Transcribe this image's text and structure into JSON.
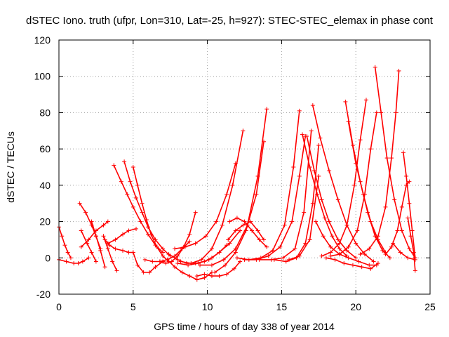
{
  "chart_data": {
    "type": "scatter",
    "title": "dSTEC Iono. truth (ufpr, Lon=310, Lat=-25, h=927): STEC-STEC_elemax in phase cont",
    "xlabel": "GPS time / hours of day 338 of year 2014",
    "ylabel": "dSTEC  / TECUs",
    "xlim": [
      0,
      25
    ],
    "ylim": [
      -20,
      120
    ],
    "xticks": [
      0,
      5,
      10,
      15,
      20,
      25
    ],
    "yticks": [
      -20,
      0,
      20,
      40,
      60,
      80,
      100,
      120
    ],
    "grid": true,
    "marker": "+",
    "color": "#ff0000",
    "series": [
      {
        "x": [
          0.0,
          0.2,
          0.4,
          0.6,
          0.8
        ],
        "y": [
          17,
          12,
          7,
          3,
          0
        ]
      },
      {
        "x": [
          0.0,
          0.5,
          1.0,
          1.3,
          1.6,
          2.0
        ],
        "y": [
          -1,
          -2,
          -3,
          -3,
          -2,
          0
        ]
      },
      {
        "x": [
          1.4,
          1.8,
          2.2,
          2.5,
          2.8
        ],
        "y": [
          30,
          25,
          18,
          12,
          5
        ]
      },
      {
        "x": [
          1.5,
          2.0,
          2.5,
          3.0,
          3.3
        ],
        "y": [
          6,
          10,
          15,
          18,
          20
        ]
      },
      {
        "x": [
          1.5,
          1.9,
          2.2,
          2.5
        ],
        "y": [
          15,
          8,
          3,
          -2
        ]
      },
      {
        "x": [
          2.2,
          2.5,
          2.8,
          3.1
        ],
        "y": [
          20,
          12,
          4,
          -5
        ]
      },
      {
        "x": [
          3.0,
          3.3,
          3.6,
          3.9
        ],
        "y": [
          12,
          5,
          -2,
          -7
        ]
      },
      {
        "x": [
          3.1,
          3.4,
          3.8,
          4.3,
          4.7,
          5.0
        ],
        "y": [
          10,
          7,
          5,
          4,
          3,
          3
        ]
      },
      {
        "x": [
          3.3,
          3.8,
          4.3,
          4.7,
          5.2
        ],
        "y": [
          8,
          10,
          13,
          15,
          16
        ]
      },
      {
        "x": [
          4.4,
          4.8,
          5.2,
          5.6,
          6.0,
          6.5,
          7.0,
          7.5
        ],
        "y": [
          53,
          42,
          33,
          25,
          17,
          10,
          5,
          1
        ]
      },
      {
        "x": [
          3.7,
          4.2,
          4.6,
          5.0,
          5.5,
          6.0,
          6.5,
          7.0
        ],
        "y": [
          51,
          42,
          35,
          28,
          20,
          13,
          7,
          3
        ]
      },
      {
        "x": [
          5.0,
          5.3,
          5.7,
          6.1,
          6.5,
          7.0
        ],
        "y": [
          3,
          -4,
          -8,
          -8,
          -5,
          -2
        ]
      },
      {
        "x": [
          5.0,
          5.3,
          5.6,
          5.9,
          6.2,
          6.6,
          7.0,
          7.4
        ],
        "y": [
          50,
          40,
          30,
          21,
          13,
          6,
          1,
          -2
        ]
      },
      {
        "x": [
          5.8,
          6.3,
          6.8,
          7.3,
          7.8,
          8.3,
          8.8
        ],
        "y": [
          -1,
          -2,
          -2,
          -1,
          1,
          5,
          9
        ]
      },
      {
        "x": [
          6.8,
          7.2,
          7.6,
          8.0,
          8.4,
          8.8,
          9.2
        ],
        "y": [
          -2,
          -3,
          -2,
          1,
          6,
          13,
          25
        ]
      },
      {
        "x": [
          7.3,
          7.8,
          8.3,
          8.8,
          9.3,
          9.8,
          10.3
        ],
        "y": [
          -1,
          -5,
          -8,
          -10,
          -12,
          -11,
          -8
        ]
      },
      {
        "x": [
          7.4,
          8.0,
          8.6,
          9.2,
          9.8,
          10.3,
          10.8,
          11.3
        ],
        "y": [
          2,
          -1,
          -3,
          -3,
          -2,
          0,
          3,
          7
        ]
      },
      {
        "x": [
          8.0,
          8.7,
          9.4,
          10.1,
          10.8,
          11.5,
          12.2
        ],
        "y": [
          -3,
          -4,
          -3,
          -1,
          3,
          8,
          15
        ]
      },
      {
        "x": [
          9.3,
          9.8,
          10.3,
          10.8,
          11.3,
          11.8,
          12.2
        ],
        "y": [
          -10,
          -9,
          -10,
          -10,
          -9,
          -6,
          -2
        ]
      },
      {
        "x": [
          7.8,
          8.5,
          9.2,
          9.9,
          10.6,
          11.3,
          11.9
        ],
        "y": [
          5,
          6,
          8,
          12,
          20,
          35,
          52
        ]
      },
      {
        "x": [
          8.2,
          8.9,
          9.6,
          10.3,
          11.0,
          11.7,
          12.4
        ],
        "y": [
          -2,
          -3,
          -1,
          5,
          18,
          40,
          70
        ]
      },
      {
        "x": [
          9.5,
          10.3,
          11.1,
          11.9,
          12.7,
          13.4,
          14.0
        ],
        "y": [
          -4,
          -4,
          -1,
          5,
          18,
          45,
          82
        ]
      },
      {
        "x": [
          10.5,
          11.2,
          11.9,
          12.6,
          13.3,
          13.8
        ],
        "y": [
          -8,
          -4,
          3,
          15,
          35,
          64
        ]
      },
      {
        "x": [
          11.5,
          12.0,
          12.5,
          13.0,
          13.5,
          14.0
        ],
        "y": [
          20,
          22,
          20,
          15,
          10,
          6
        ]
      },
      {
        "x": [
          11.4,
          11.9,
          12.4,
          12.9,
          13.4,
          13.8
        ],
        "y": [
          10,
          15,
          18,
          20,
          15,
          10
        ]
      },
      {
        "x": [
          12.0,
          12.8,
          13.6,
          14.4,
          15.2,
          15.8,
          16.2
        ],
        "y": [
          0,
          -1,
          0,
          4,
          18,
          50,
          81
        ]
      },
      {
        "x": [
          12.5,
          13.3,
          14.1,
          14.9,
          15.7,
          16.2,
          16.6
        ],
        "y": [
          -1,
          -1,
          1,
          6,
          20,
          45,
          67
        ]
      },
      {
        "x": [
          13.5,
          14.3,
          15.1,
          15.9,
          16.5,
          17.0
        ],
        "y": [
          -1,
          -1,
          0,
          5,
          25,
          70
        ]
      },
      {
        "x": [
          14.5,
          15.3,
          16.0,
          16.6,
          17.1,
          17.5
        ],
        "y": [
          -1,
          -2,
          0,
          8,
          30,
          62
        ]
      },
      {
        "x": [
          15.5,
          16.2,
          16.9,
          17.5
        ],
        "y": [
          -1,
          1,
          10,
          45
        ]
      },
      {
        "x": [
          17.1,
          17.6,
          18.2,
          18.8,
          19.4,
          20.0,
          20.6,
          21.2
        ],
        "y": [
          84,
          66,
          48,
          32,
          18,
          8,
          2,
          -2
        ]
      },
      {
        "x": [
          16.4,
          16.9,
          17.4,
          17.9,
          18.4,
          18.9,
          19.4
        ],
        "y": [
          68,
          50,
          35,
          22,
          12,
          5,
          1
        ]
      },
      {
        "x": [
          16.7,
          17.2,
          17.7,
          18.2,
          18.8,
          19.4,
          20.0
        ],
        "y": [
          67,
          48,
          32,
          20,
          10,
          4,
          0
        ]
      },
      {
        "x": [
          17.3,
          17.8,
          18.3,
          18.9,
          19.5,
          20.2,
          20.9,
          21.4
        ],
        "y": [
          20,
          12,
          6,
          2,
          0,
          -2,
          -4,
          -4
        ]
      },
      {
        "x": [
          18.0,
          18.6,
          19.2,
          19.8,
          20.4,
          21.0,
          21.5
        ],
        "y": [
          0,
          -1,
          -3,
          -4,
          -5,
          -6,
          -3
        ]
      },
      {
        "x": [
          19.3,
          19.8,
          20.3,
          20.8,
          21.3,
          21.8,
          22.3
        ],
        "y": [
          86,
          62,
          42,
          25,
          12,
          4,
          0
        ]
      },
      {
        "x": [
          19.5,
          20.0,
          20.5,
          21.0,
          21.5,
          22.0
        ],
        "y": [
          75,
          52,
          35,
          20,
          10,
          3
        ]
      },
      {
        "x": [
          17.7,
          18.3,
          18.9,
          19.4,
          19.9,
          20.3,
          20.7
        ],
        "y": [
          1,
          3,
          8,
          18,
          40,
          65,
          87
        ]
      },
      {
        "x": [
          18.3,
          18.9,
          19.5,
          20.1,
          20.6,
          21.0,
          21.4
        ],
        "y": [
          1,
          2,
          6,
          15,
          35,
          60,
          80
        ]
      },
      {
        "x": [
          21.3,
          21.7,
          22.1,
          22.6,
          23.1,
          23.6,
          24.0
        ],
        "y": [
          105,
          80,
          55,
          32,
          15,
          5,
          0
        ]
      },
      {
        "x": [
          20.3,
          20.9,
          21.5,
          22.0,
          22.4,
          22.7,
          22.9
        ],
        "y": [
          2,
          5,
          12,
          28,
          55,
          80,
          103
        ]
      },
      {
        "x": [
          22.0,
          22.4,
          22.8,
          23.1,
          23.4,
          23.6
        ],
        "y": [
          2,
          6,
          15,
          28,
          40,
          42
        ]
      },
      {
        "x": [
          23.2,
          23.4,
          23.6,
          23.8,
          24.0
        ],
        "y": [
          58,
          45,
          30,
          15,
          0
        ]
      },
      {
        "x": [
          23.5,
          23.7,
          23.9,
          24.0
        ],
        "y": [
          22,
          12,
          3,
          -7
        ]
      },
      {
        "x": [
          22.5,
          23.0,
          23.5,
          24.0
        ],
        "y": [
          8,
          3,
          0,
          -1
        ]
      }
    ]
  }
}
